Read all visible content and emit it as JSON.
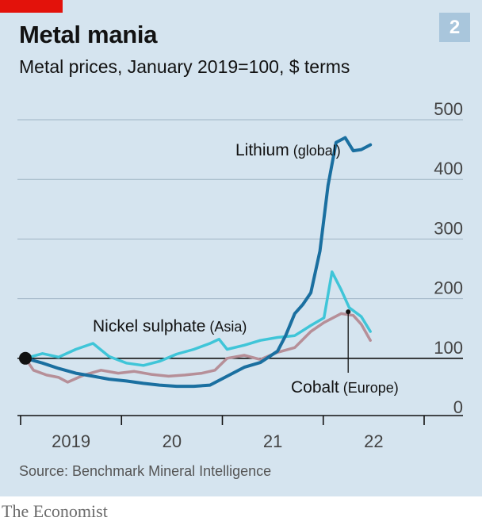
{
  "header": {
    "title": "Metal mania",
    "subtitle": "Metal prices, January 2019=100, $ terms",
    "badge": "2"
  },
  "footer": {
    "source": "Source: Benchmark Mineral Intelligence",
    "brand": "The Economist"
  },
  "colors": {
    "background": "#d5e4ef",
    "accent_red": "#e3120b",
    "lithium": "#1a6fa0",
    "nickel": "#3fc5d8",
    "cobalt": "#b68f98",
    "gridline": "#9fb4c4",
    "baseline": "#121212"
  },
  "chart_data": {
    "type": "line",
    "title": "Metal mania",
    "subtitle": "Metal prices, January 2019=100, $ terms",
    "ylim": [
      0,
      500
    ],
    "yticks": [
      "500",
      "400",
      "300",
      "200",
      "100",
      "0"
    ],
    "ytick_values": [
      500,
      400,
      300,
      200,
      100,
      0
    ],
    "reference_line": 100,
    "xlim": [
      2019.0,
      2023.0
    ],
    "xticks": [
      {
        "label": "2019",
        "center": 2019.5
      },
      {
        "label": "20",
        "center": 2020.5
      },
      {
        "label": "21",
        "center": 2021.5
      },
      {
        "label": "22",
        "center": 2022.5
      }
    ],
    "grid": true,
    "series": [
      {
        "name": "Lithium",
        "qualifier": "(global)",
        "color": "#1a6fa0",
        "points": [
          [
            2019.0,
            100
          ],
          [
            2019.17,
            92
          ],
          [
            2019.33,
            83
          ],
          [
            2019.5,
            75
          ],
          [
            2019.67,
            70
          ],
          [
            2019.83,
            65
          ],
          [
            2020.0,
            62
          ],
          [
            2020.17,
            58
          ],
          [
            2020.33,
            55
          ],
          [
            2020.5,
            53
          ],
          [
            2020.67,
            53
          ],
          [
            2020.83,
            55
          ],
          [
            2021.0,
            70
          ],
          [
            2021.17,
            85
          ],
          [
            2021.33,
            93
          ],
          [
            2021.5,
            112
          ],
          [
            2021.58,
            138
          ],
          [
            2021.67,
            175
          ],
          [
            2021.75,
            190
          ],
          [
            2021.83,
            210
          ],
          [
            2021.92,
            280
          ],
          [
            2022.0,
            390
          ],
          [
            2022.08,
            462
          ],
          [
            2022.17,
            470
          ],
          [
            2022.25,
            448
          ],
          [
            2022.33,
            450
          ],
          [
            2022.42,
            458
          ]
        ]
      },
      {
        "name": "Nickel sulphate",
        "qualifier": "(Asia)",
        "color": "#3fc5d8",
        "points": [
          [
            2019.0,
            100
          ],
          [
            2019.17,
            108
          ],
          [
            2019.33,
            102
          ],
          [
            2019.5,
            115
          ],
          [
            2019.67,
            125
          ],
          [
            2019.83,
            103
          ],
          [
            2020.0,
            92
          ],
          [
            2020.17,
            88
          ],
          [
            2020.33,
            95
          ],
          [
            2020.5,
            107
          ],
          [
            2020.67,
            115
          ],
          [
            2020.83,
            125
          ],
          [
            2020.92,
            132
          ],
          [
            2021.0,
            115
          ],
          [
            2021.17,
            122
          ],
          [
            2021.33,
            130
          ],
          [
            2021.5,
            135
          ],
          [
            2021.67,
            138
          ],
          [
            2021.83,
            155
          ],
          [
            2021.96,
            168
          ],
          [
            2022.04,
            245
          ],
          [
            2022.13,
            215
          ],
          [
            2022.21,
            185
          ],
          [
            2022.33,
            170
          ],
          [
            2022.42,
            145
          ]
        ]
      },
      {
        "name": "Cobalt",
        "qualifier": "(Europe)",
        "color": "#b68f98",
        "points": [
          [
            2019.0,
            100
          ],
          [
            2019.08,
            80
          ],
          [
            2019.21,
            72
          ],
          [
            2019.33,
            68
          ],
          [
            2019.42,
            60
          ],
          [
            2019.58,
            72
          ],
          [
            2019.75,
            80
          ],
          [
            2019.92,
            75
          ],
          [
            2020.08,
            78
          ],
          [
            2020.25,
            73
          ],
          [
            2020.42,
            70
          ],
          [
            2020.58,
            72
          ],
          [
            2020.75,
            75
          ],
          [
            2020.88,
            80
          ],
          [
            2021.0,
            100
          ],
          [
            2021.17,
            105
          ],
          [
            2021.33,
            98
          ],
          [
            2021.5,
            110
          ],
          [
            2021.67,
            118
          ],
          [
            2021.83,
            145
          ],
          [
            2021.96,
            160
          ],
          [
            2022.13,
            175
          ],
          [
            2022.25,
            172
          ],
          [
            2022.33,
            157
          ],
          [
            2022.42,
            130
          ]
        ]
      }
    ],
    "annotations": [
      {
        "series": "Cobalt",
        "x": 2022.2,
        "y": 178,
        "label_series": "Cobalt"
      }
    ]
  }
}
